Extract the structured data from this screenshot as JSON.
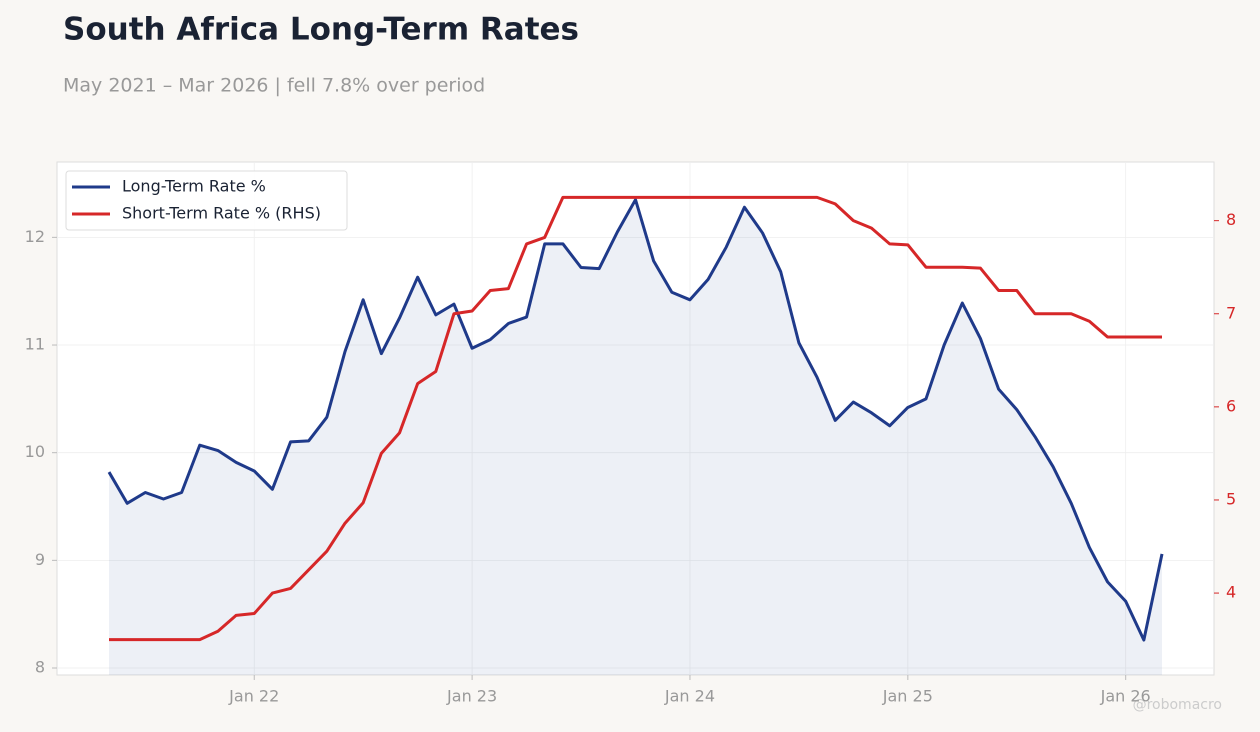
{
  "chart_data": {
    "type": "line",
    "title": "South Africa Long-Term Rates",
    "subtitle": "May 2021 – Mar 2026 | fell 7.8% over period",
    "watermark": "@robomacro",
    "x": [
      "2021-05",
      "2021-06",
      "2021-07",
      "2021-08",
      "2021-09",
      "2021-10",
      "2021-11",
      "2021-12",
      "2022-01",
      "2022-02",
      "2022-03",
      "2022-04",
      "2022-05",
      "2022-06",
      "2022-07",
      "2022-08",
      "2022-09",
      "2022-10",
      "2022-11",
      "2022-12",
      "2023-01",
      "2023-02",
      "2023-03",
      "2023-04",
      "2023-05",
      "2023-06",
      "2023-07",
      "2023-08",
      "2023-09",
      "2023-10",
      "2023-11",
      "2023-12",
      "2024-01",
      "2024-02",
      "2024-03",
      "2024-04",
      "2024-05",
      "2024-06",
      "2024-07",
      "2024-08",
      "2024-09",
      "2024-10",
      "2024-11",
      "2024-12",
      "2025-01",
      "2025-02",
      "2025-03",
      "2025-04",
      "2025-05",
      "2025-06",
      "2025-07",
      "2025-08",
      "2025-09",
      "2025-10",
      "2025-11",
      "2025-12",
      "2026-01",
      "2026-02",
      "2026-03"
    ],
    "series": [
      {
        "name": "Long-Term Rate %",
        "color": "#1f3a8a",
        "fill": true,
        "values": [
          9.82,
          9.53,
          9.63,
          9.57,
          9.63,
          10.07,
          10.02,
          9.91,
          9.83,
          9.66,
          10.1,
          10.11,
          10.33,
          10.94,
          11.42,
          10.92,
          11.25,
          11.63,
          11.28,
          11.38,
          10.97,
          11.05,
          11.2,
          11.26,
          11.94,
          11.94,
          11.72,
          11.71,
          12.05,
          12.35,
          11.78,
          11.49,
          11.42,
          11.61,
          11.91,
          12.28,
          12.04,
          11.68,
          11.02,
          10.7,
          10.3,
          10.47,
          10.37,
          10.25,
          10.42,
          10.5,
          11.0,
          11.39,
          11.06,
          10.59,
          10.4,
          10.15,
          9.87,
          9.53,
          9.12,
          8.8,
          8.62,
          8.26,
          9.06
        ]
      },
      {
        "name": "Short-Term Rate % (RHS)",
        "color": "#d62728",
        "axis": "y2",
        "values": [
          3.5,
          3.5,
          3.5,
          3.5,
          3.5,
          3.5,
          3.59,
          3.76,
          3.78,
          4.0,
          4.05,
          4.25,
          4.45,
          4.75,
          4.97,
          5.5,
          5.72,
          6.25,
          6.38,
          7.0,
          7.03,
          7.25,
          7.27,
          7.75,
          7.82,
          8.25,
          8.25,
          8.25,
          8.25,
          8.25,
          8.25,
          8.25,
          8.25,
          8.25,
          8.25,
          8.25,
          8.25,
          8.25,
          8.25,
          8.25,
          8.18,
          8.0,
          7.92,
          7.75,
          7.74,
          7.5,
          7.5,
          7.5,
          7.49,
          7.25,
          7.25,
          7.0,
          7.0,
          7.0,
          6.92,
          6.75,
          6.75,
          6.75,
          6.75
        ]
      }
    ],
    "xticks": [
      {
        "value": "2022-01",
        "label": "Jan 22"
      },
      {
        "value": "2023-01",
        "label": "Jan 23"
      },
      {
        "value": "2024-01",
        "label": "Jan 24"
      },
      {
        "value": "2025-01",
        "label": "Jan 25"
      },
      {
        "value": "2026-01",
        "label": "Jan 26"
      }
    ],
    "ylim": [
      7.935,
      12.7
    ],
    "yticks": [
      8,
      9,
      10,
      11,
      12
    ],
    "y2lim": [
      3.12,
      8.63
    ],
    "y2ticks": [
      4,
      5,
      6,
      7,
      8
    ],
    "grid": true,
    "legend": "upper left"
  }
}
